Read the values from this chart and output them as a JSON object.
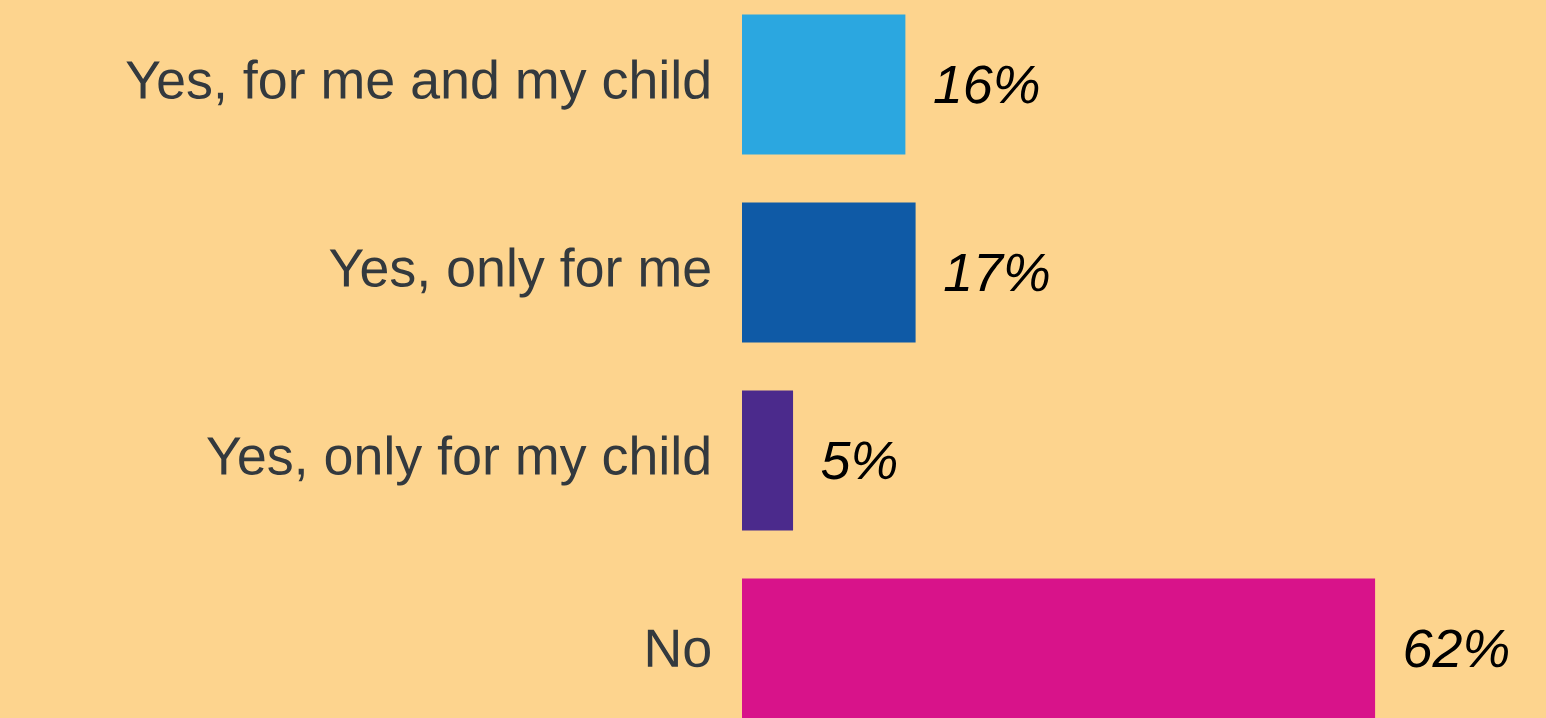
{
  "chart_data": {
    "type": "bar",
    "orientation": "horizontal",
    "categories": [
      "Yes, for me and my child",
      "Yes, only for me",
      "Yes, only for my child",
      "No"
    ],
    "values": [
      16,
      17,
      5,
      62
    ],
    "colors": [
      "#2ba7e0",
      "#0f5aa6",
      "#4b2a8c",
      "#d8138a"
    ],
    "value_labels": [
      "16%",
      "17%",
      "5%",
      "62%"
    ]
  }
}
